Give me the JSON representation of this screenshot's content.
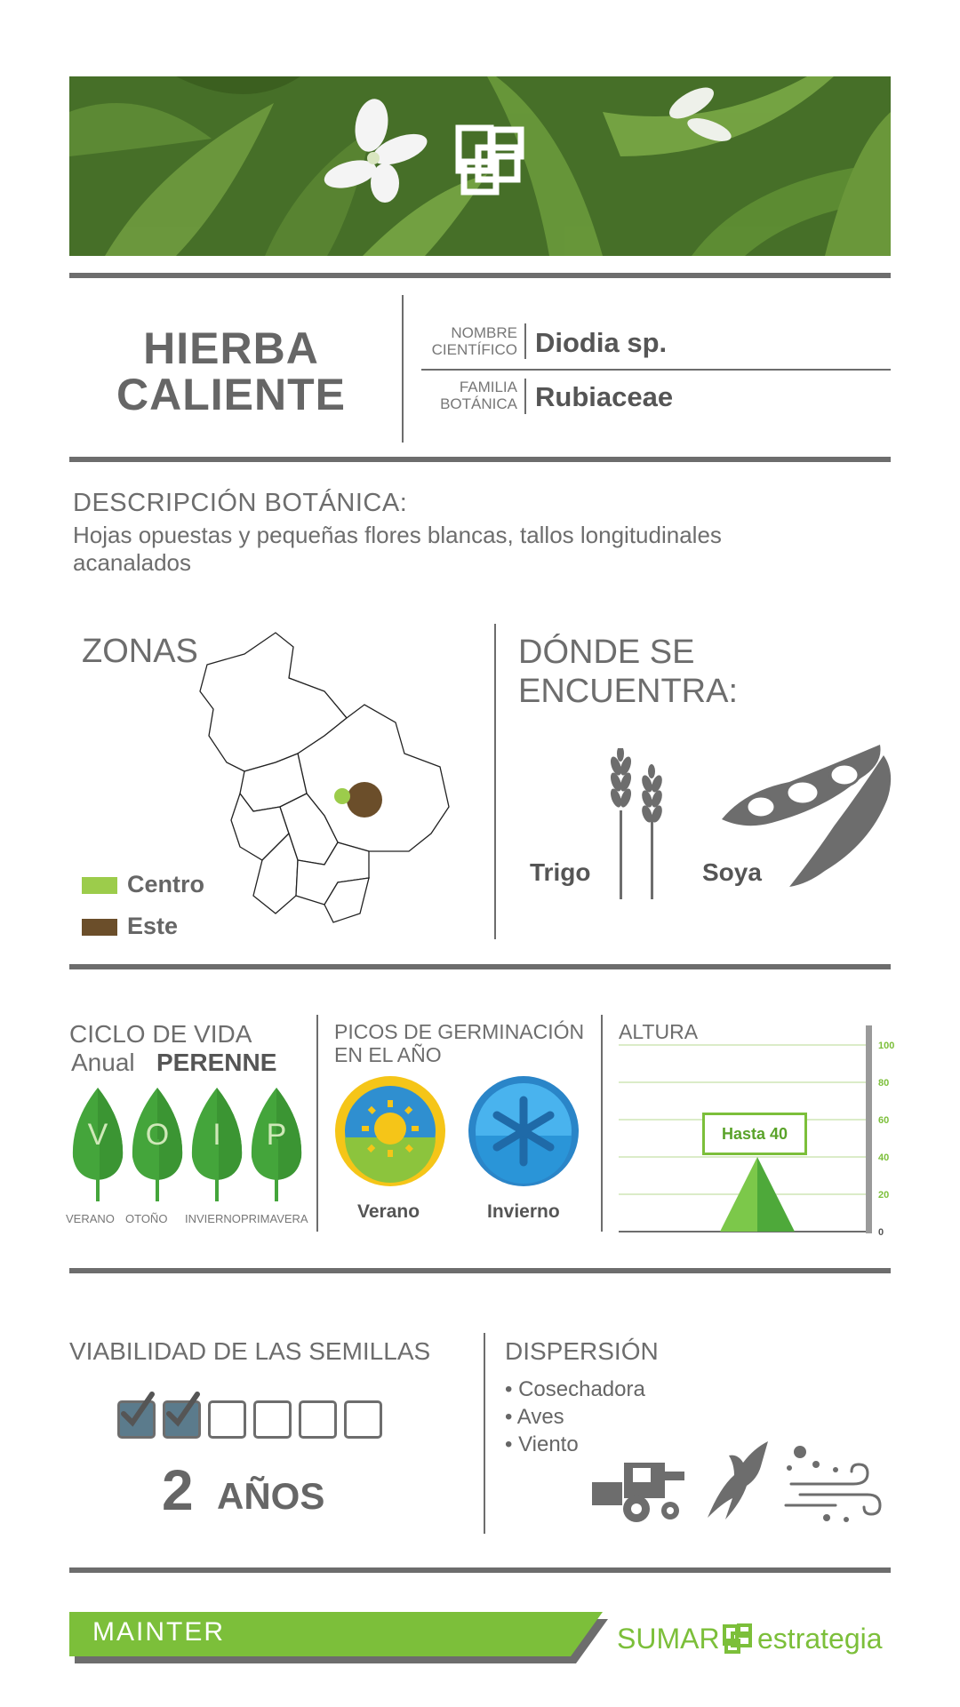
{
  "header": {
    "title_line1": "HIERBA",
    "title_line2": "CALIENTE",
    "scientific_label_1": "NOMBRE",
    "scientific_label_2": "CIENTÍFICO",
    "scientific_value": "Diodia sp.",
    "family_label_1": "FAMILIA",
    "family_label_2": "BOTÁNICA",
    "family_value": "Rubiaceae"
  },
  "description": {
    "heading": "DESCRIPCIÓN BOTÁNICA:",
    "line1": "Hojas opuestas y pequeñas flores blancas, tallos longitudinales",
    "line2": "acanalados"
  },
  "zones": {
    "heading": "ZONAS",
    "legend": [
      {
        "label": "Centro",
        "color": "#9ccc4b"
      },
      {
        "label": "Este",
        "color": "#6b4e2a"
      }
    ]
  },
  "where": {
    "heading_line1": "DÓNDE SE",
    "heading_line2": "ENCUENTRA:",
    "items": [
      {
        "label": "Trigo",
        "icon": "wheat-icon"
      },
      {
        "label": "Soya",
        "icon": "soybean-icon"
      }
    ]
  },
  "life_cycle": {
    "heading": "CICLO DE VIDA",
    "option_annual": "Anual",
    "option_perennial": "PERENNE",
    "leaves": [
      {
        "letter": "V",
        "season": "VERANO"
      },
      {
        "letter": "O",
        "season": "OTOÑO"
      },
      {
        "letter": "I",
        "season": "INVIERNO"
      },
      {
        "letter": "P",
        "season": "PRIMAVERA"
      }
    ]
  },
  "germination": {
    "heading_line1": "PICOS DE GERMINACIÓN",
    "heading_line2": "EN EL AÑO",
    "items": [
      {
        "label": "Verano",
        "icon": "sun-icon"
      },
      {
        "label": "Invierno",
        "icon": "snowflake-icon"
      }
    ]
  },
  "height": {
    "heading": "ALTURA",
    "badge": "Hasta 40",
    "ticks": [
      "100",
      "80",
      "60",
      "40",
      "20",
      "0"
    ],
    "value": 40,
    "max": 100
  },
  "seeds": {
    "heading": "VIABILIDAD DE LAS SEMILLAS",
    "checked": 2,
    "total": 6,
    "value_number": "2",
    "value_unit": "AÑOS"
  },
  "dispersion": {
    "heading": "DISPERSIÓN",
    "items": [
      "Cosechadora",
      "Aves",
      "Viento"
    ]
  },
  "footer": {
    "brand_left": "MAINTER",
    "brand_right_1": "SUMAR",
    "brand_right_2": "estrategia"
  },
  "colors": {
    "green": "#7cbf3a",
    "gray": "#6d6d6d",
    "brown": "#6b4e2a"
  }
}
